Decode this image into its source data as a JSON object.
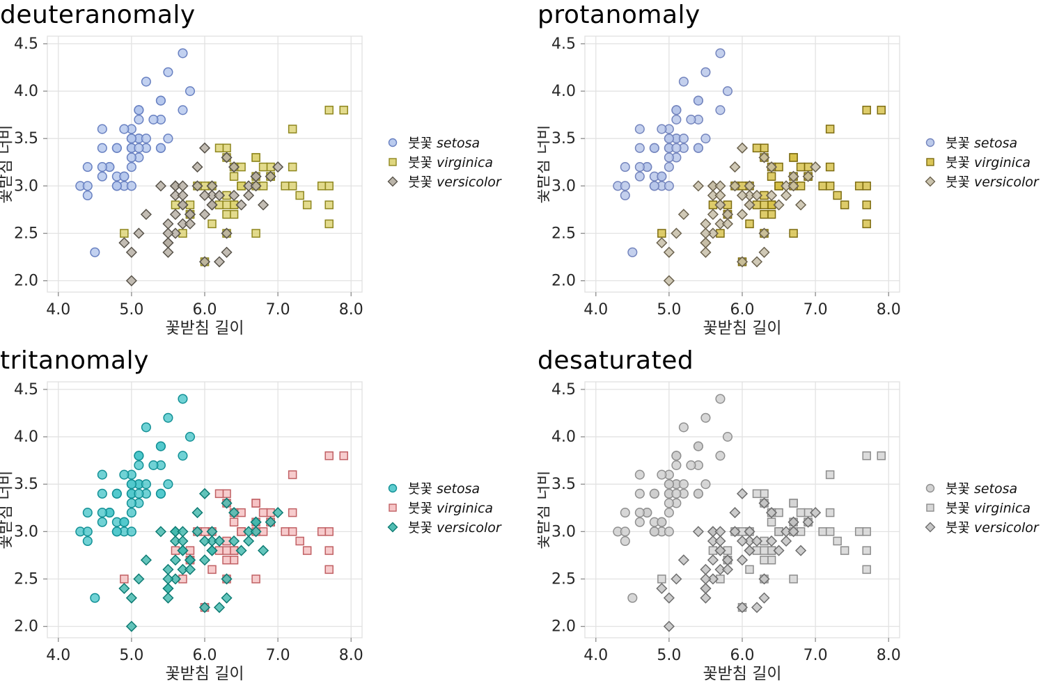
{
  "figure": {
    "background": "#ffffff",
    "grid_color": "#e2e2e2",
    "spine_color": "#e0e0e0",
    "tick_color": "#8a8a8a",
    "text_color": "#262626",
    "title_color": "#000000"
  },
  "legend": {
    "prefix": "붓꽃",
    "items": [
      {
        "species": "setosa",
        "marker": "circle"
      },
      {
        "species": "virginica",
        "marker": "square"
      },
      {
        "species": "versicolor",
        "marker": "diamond"
      }
    ]
  },
  "panels": [
    {
      "title": "deuteranomaly",
      "colors": {
        "setosa": {
          "fill": "#b3c5ec",
          "stroke": "#6880c1"
        },
        "virginica": {
          "fill": "#dcd271",
          "stroke": "#8e861e"
        },
        "versicolor": {
          "fill": "#b4ada1",
          "stroke": "#575249"
        }
      }
    },
    {
      "title": "protanomaly",
      "colors": {
        "setosa": {
          "fill": "#b5c4e8",
          "stroke": "#7384bd"
        },
        "virginica": {
          "fill": "#d6bf45",
          "stroke": "#7c6b10"
        },
        "versicolor": {
          "fill": "#c4bca4",
          "stroke": "#6a614d"
        }
      }
    },
    {
      "title": "tritanomaly",
      "colors": {
        "setosa": {
          "fill": "#4cc7ca",
          "stroke": "#129095"
        },
        "virginica": {
          "fill": "#f5bfc1",
          "stroke": "#c05f63"
        },
        "versicolor": {
          "fill": "#3db6ab",
          "stroke": "#0c7a72"
        }
      }
    },
    {
      "title": "desaturated",
      "colors": {
        "setosa": {
          "fill": "#cdcdcd",
          "stroke": "#8f8f8f"
        },
        "virginica": {
          "fill": "#d3d3d3",
          "stroke": "#8c8c8c"
        },
        "versicolor": {
          "fill": "#c0c0c0",
          "stroke": "#6d6d6d"
        }
      }
    }
  ],
  "chart_data": {
    "type": "scatter",
    "panel_titles": [
      "deuteranomaly",
      "protanomaly",
      "tritanomaly",
      "desaturated"
    ],
    "note": "Same iris sepal data repeated in all four panels with different color-vision-simulation palettes",
    "xlabel": "꽃받침 길이",
    "ylabel": "꽃받침 너비",
    "xlim": [
      3.85,
      8.15
    ],
    "ylim": [
      1.88,
      4.58
    ],
    "xticks": [
      4.0,
      5.0,
      6.0,
      7.0,
      8.0
    ],
    "yticks": [
      2.0,
      2.5,
      3.0,
      3.5,
      4.0,
      4.5
    ],
    "grid": true,
    "legend_position": "right",
    "series": [
      {
        "name": "붓꽃 setosa",
        "species": "setosa",
        "marker": "circle",
        "points": [
          [
            5.1,
            3.5
          ],
          [
            4.9,
            3.0
          ],
          [
            4.7,
            3.2
          ],
          [
            4.6,
            3.1
          ],
          [
            5.0,
            3.6
          ],
          [
            5.4,
            3.9
          ],
          [
            4.6,
            3.4
          ],
          [
            5.0,
            3.4
          ],
          [
            4.4,
            2.9
          ],
          [
            4.9,
            3.1
          ],
          [
            5.4,
            3.7
          ],
          [
            4.8,
            3.4
          ],
          [
            4.8,
            3.0
          ],
          [
            4.3,
            3.0
          ],
          [
            5.8,
            4.0
          ],
          [
            5.7,
            4.4
          ],
          [
            5.4,
            3.9
          ],
          [
            5.1,
            3.5
          ],
          [
            5.7,
            3.8
          ],
          [
            5.1,
            3.8
          ],
          [
            5.4,
            3.4
          ],
          [
            5.1,
            3.7
          ],
          [
            4.6,
            3.6
          ],
          [
            5.1,
            3.3
          ],
          [
            4.8,
            3.4
          ],
          [
            5.0,
            3.0
          ],
          [
            5.0,
            3.4
          ],
          [
            5.2,
            3.5
          ],
          [
            5.2,
            3.4
          ],
          [
            4.7,
            3.2
          ],
          [
            4.8,
            3.1
          ],
          [
            5.4,
            3.4
          ],
          [
            5.2,
            4.1
          ],
          [
            5.5,
            4.2
          ],
          [
            4.9,
            3.1
          ],
          [
            5.0,
            3.2
          ],
          [
            5.5,
            3.5
          ],
          [
            4.9,
            3.6
          ],
          [
            4.4,
            3.0
          ],
          [
            5.1,
            3.4
          ],
          [
            5.0,
            3.5
          ],
          [
            4.5,
            2.3
          ],
          [
            4.4,
            3.2
          ],
          [
            5.0,
            3.5
          ],
          [
            5.1,
            3.8
          ],
          [
            4.8,
            3.0
          ],
          [
            5.1,
            3.8
          ],
          [
            4.6,
            3.2
          ],
          [
            5.3,
            3.7
          ],
          [
            5.0,
            3.3
          ]
        ]
      },
      {
        "name": "붓꽃 virginica",
        "species": "virginica",
        "marker": "square",
        "points": [
          [
            6.3,
            3.3
          ],
          [
            5.8,
            2.7
          ],
          [
            7.1,
            3.0
          ],
          [
            6.3,
            2.9
          ],
          [
            6.5,
            3.0
          ],
          [
            7.6,
            3.0
          ],
          [
            4.9,
            2.5
          ],
          [
            7.3,
            2.9
          ],
          [
            6.7,
            2.5
          ],
          [
            7.2,
            3.6
          ],
          [
            6.5,
            3.2
          ],
          [
            6.4,
            2.7
          ],
          [
            6.8,
            3.0
          ],
          [
            5.7,
            2.5
          ],
          [
            5.8,
            2.8
          ],
          [
            6.4,
            3.2
          ],
          [
            6.5,
            3.0
          ],
          [
            7.7,
            3.8
          ],
          [
            7.7,
            2.6
          ],
          [
            6.0,
            2.2
          ],
          [
            6.9,
            3.2
          ],
          [
            5.6,
            2.8
          ],
          [
            7.7,
            2.8
          ],
          [
            6.3,
            2.7
          ],
          [
            6.7,
            3.3
          ],
          [
            7.2,
            3.2
          ],
          [
            6.2,
            2.8
          ],
          [
            6.1,
            3.0
          ],
          [
            6.4,
            2.8
          ],
          [
            7.2,
            3.0
          ],
          [
            7.4,
            2.8
          ],
          [
            7.9,
            3.8
          ],
          [
            6.4,
            2.8
          ],
          [
            6.3,
            2.8
          ],
          [
            6.1,
            2.6
          ],
          [
            7.7,
            3.0
          ],
          [
            6.3,
            3.4
          ],
          [
            6.4,
            3.1
          ],
          [
            6.0,
            3.0
          ],
          [
            6.9,
            3.1
          ],
          [
            6.7,
            3.1
          ],
          [
            6.9,
            3.1
          ],
          [
            5.8,
            2.7
          ],
          [
            6.8,
            3.2
          ],
          [
            6.7,
            3.3
          ],
          [
            6.7,
            3.0
          ],
          [
            6.3,
            2.5
          ],
          [
            6.5,
            3.0
          ],
          [
            6.2,
            3.4
          ],
          [
            5.9,
            3.0
          ]
        ]
      },
      {
        "name": "붓꽃 versicolor",
        "species": "versicolor",
        "marker": "diamond",
        "points": [
          [
            7.0,
            3.2
          ],
          [
            6.4,
            3.2
          ],
          [
            6.9,
            3.1
          ],
          [
            5.5,
            2.3
          ],
          [
            6.5,
            2.8
          ],
          [
            5.7,
            2.8
          ],
          [
            6.3,
            3.3
          ],
          [
            4.9,
            2.4
          ],
          [
            6.6,
            2.9
          ],
          [
            5.2,
            2.7
          ],
          [
            5.0,
            2.0
          ],
          [
            5.9,
            3.0
          ],
          [
            6.0,
            2.2
          ],
          [
            6.1,
            2.9
          ],
          [
            5.6,
            2.9
          ],
          [
            6.7,
            3.1
          ],
          [
            5.6,
            3.0
          ],
          [
            5.8,
            2.7
          ],
          [
            6.2,
            2.2
          ],
          [
            5.6,
            2.5
          ],
          [
            5.9,
            3.2
          ],
          [
            6.1,
            2.8
          ],
          [
            6.3,
            2.5
          ],
          [
            6.1,
            2.8
          ],
          [
            6.4,
            2.9
          ],
          [
            6.6,
            3.0
          ],
          [
            6.8,
            2.8
          ],
          [
            6.7,
            3.0
          ],
          [
            6.0,
            2.9
          ],
          [
            5.7,
            2.6
          ],
          [
            5.5,
            2.4
          ],
          [
            5.5,
            2.4
          ],
          [
            5.8,
            2.7
          ],
          [
            6.0,
            2.7
          ],
          [
            5.4,
            3.0
          ],
          [
            6.0,
            3.4
          ],
          [
            6.7,
            3.1
          ],
          [
            6.3,
            2.3
          ],
          [
            5.6,
            3.0
          ],
          [
            5.5,
            2.5
          ],
          [
            5.5,
            2.6
          ],
          [
            6.1,
            3.0
          ],
          [
            5.8,
            2.6
          ],
          [
            5.0,
            2.3
          ],
          [
            5.6,
            2.7
          ],
          [
            5.7,
            3.0
          ],
          [
            5.7,
            2.9
          ],
          [
            6.2,
            2.9
          ],
          [
            5.1,
            2.5
          ],
          [
            5.7,
            2.8
          ]
        ]
      }
    ]
  }
}
